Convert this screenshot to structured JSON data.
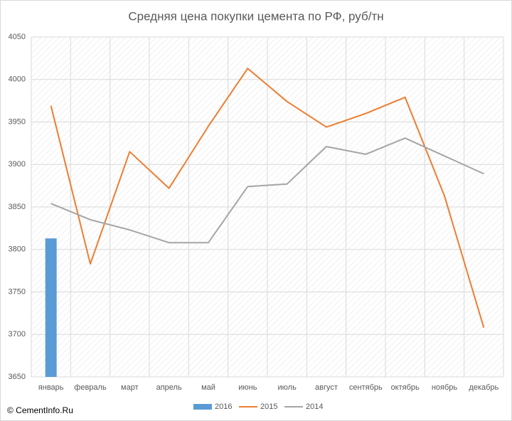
{
  "chart_data": {
    "type": "line",
    "title": "Средняя цена покупки цемента по РФ, руб/тн",
    "source": "© CementInfo.Ru",
    "categories": [
      "январь",
      "февраль",
      "март",
      "апрель",
      "май",
      "июнь",
      "июль",
      "август",
      "сентябрь",
      "октябрь",
      "ноябрь",
      "декабрь"
    ],
    "series": [
      {
        "name": "2016",
        "type": "bar",
        "color": "#5b9bd5",
        "values": [
          3813,
          null,
          null,
          null,
          null,
          null,
          null,
          null,
          null,
          null,
          null,
          null
        ]
      },
      {
        "name": "2015",
        "type": "line",
        "color": "#ed7d31",
        "values": [
          3969,
          3783,
          3915,
          3872,
          3945,
          4013,
          3974,
          3944,
          3960,
          3979,
          3863,
          3708
        ]
      },
      {
        "name": "2014",
        "type": "line",
        "color": "#a5a5a5",
        "values": [
          3854,
          3835,
          3823,
          3808,
          3808,
          3874,
          3877,
          3921,
          3912,
          3931,
          3910,
          3889
        ]
      }
    ],
    "ylim": [
      3650,
      4050
    ],
    "yticks": [
      3650,
      3700,
      3750,
      3800,
      3850,
      3900,
      3950,
      4000,
      4050
    ],
    "grid": true,
    "legend": "bottom"
  }
}
